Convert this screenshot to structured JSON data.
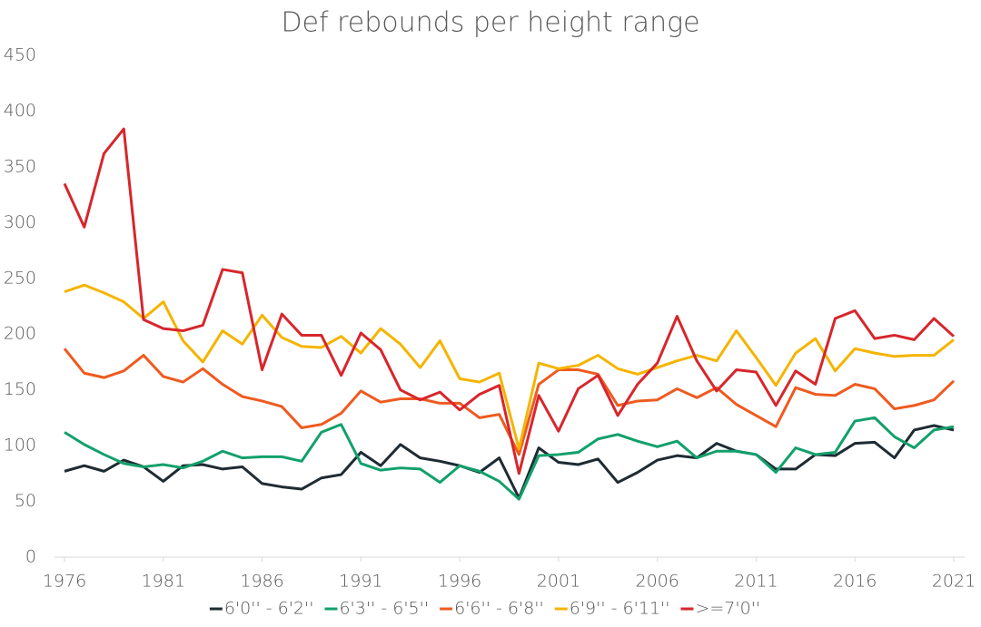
{
  "chart_data": {
    "type": "line",
    "title": "Def rebounds per height range",
    "x": [
      1976,
      1977,
      1978,
      1979,
      1980,
      1981,
      1982,
      1983,
      1984,
      1985,
      1986,
      1987,
      1988,
      1989,
      1990,
      1991,
      1992,
      1993,
      1994,
      1995,
      1996,
      1997,
      1998,
      1999,
      2000,
      2001,
      2002,
      2003,
      2004,
      2005,
      2006,
      2007,
      2008,
      2009,
      2010,
      2011,
      2012,
      2013,
      2014,
      2015,
      2016,
      2017,
      2018,
      2019,
      2020,
      2021
    ],
    "xlim": [
      1976,
      2021
    ],
    "xticks": [
      1976,
      1981,
      1986,
      1991,
      1996,
      2001,
      2006,
      2011,
      2016,
      2021
    ],
    "ylim": [
      0,
      450
    ],
    "yticks": [
      0,
      50,
      100,
      150,
      200,
      250,
      300,
      350,
      400,
      450
    ],
    "legend": "bottom",
    "series": [
      {
        "name": "6'0'' - 6'2''",
        "color": "#1e2b33",
        "values": [
          77,
          82,
          77,
          87,
          81,
          68,
          82,
          83,
          79,
          81,
          66,
          63,
          61,
          71,
          74,
          94,
          82,
          101,
          89,
          86,
          82,
          76,
          89,
          53,
          98,
          85,
          83,
          88,
          67,
          76,
          87,
          91,
          89,
          102,
          95,
          92,
          79,
          79,
          92,
          91,
          102,
          103,
          89,
          114,
          118,
          114
        ]
      },
      {
        "name": "6'3'' - 6'5''",
        "color": "#12a06b",
        "values": [
          112,
          101,
          92,
          84,
          81,
          83,
          80,
          86,
          95,
          89,
          90,
          90,
          86,
          112,
          119,
          84,
          78,
          80,
          79,
          67,
          82,
          77,
          68,
          52,
          91,
          92,
          94,
          106,
          110,
          104,
          99,
          104,
          89,
          95,
          95,
          92,
          76,
          98,
          92,
          94,
          122,
          125,
          108,
          98,
          114,
          117
        ]
      },
      {
        "name": "6'6'' - 6'8''",
        "color": "#ef5a1f",
        "values": [
          187,
          165,
          161,
          167,
          181,
          162,
          157,
          169,
          155,
          144,
          140,
          135,
          116,
          119,
          129,
          149,
          139,
          142,
          142,
          138,
          138,
          125,
          128,
          92,
          155,
          168,
          168,
          164,
          136,
          140,
          141,
          151,
          143,
          152,
          137,
          127,
          117,
          152,
          146,
          145,
          155,
          151,
          133,
          136,
          141,
          158
        ]
      },
      {
        "name": "6'9'' - 6'11''",
        "color": "#f5b400",
        "values": [
          238,
          244,
          237,
          229,
          214,
          229,
          194,
          175,
          203,
          191,
          217,
          197,
          189,
          188,
          198,
          183,
          205,
          191,
          170,
          194,
          160,
          157,
          165,
          97,
          174,
          169,
          172,
          181,
          169,
          164,
          170,
          176,
          181,
          176,
          203,
          179,
          154,
          183,
          196,
          167,
          187,
          183,
          180,
          181,
          181,
          195
        ]
      },
      {
        "name": ">=7'0''",
        "color": "#d7262c",
        "values": [
          335,
          296,
          362,
          384,
          213,
          205,
          203,
          208,
          258,
          255,
          168,
          218,
          199,
          199,
          163,
          201,
          186,
          150,
          141,
          148,
          132,
          146,
          154,
          75,
          145,
          113,
          151,
          163,
          127,
          155,
          174,
          216,
          176,
          149,
          168,
          166,
          136,
          167,
          155,
          214,
          221,
          196,
          199,
          195,
          214,
          198
        ]
      }
    ]
  }
}
